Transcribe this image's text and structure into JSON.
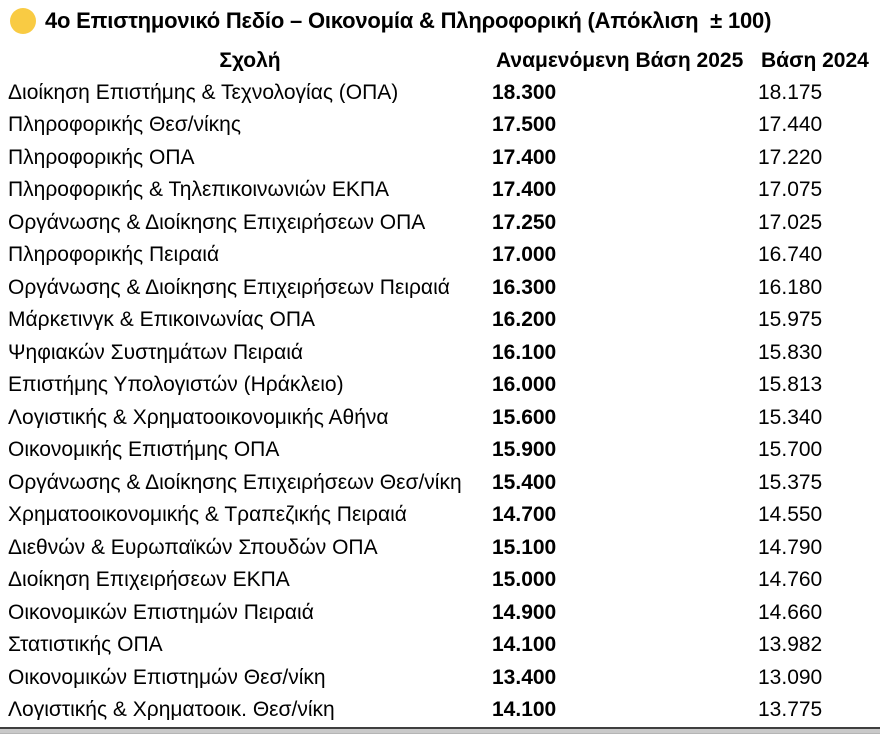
{
  "title": {
    "bullet_color": "#F9CB43",
    "text": "4ο Επιστημονικό Πεδίο – Οικονομία & Πληροφορική (Απόκλιση  ± 100)"
  },
  "table": {
    "columns": {
      "school": "Σχολή",
      "expected_2025": "Αναμενόμενη Βάση 2025",
      "base_2024": "Βάση 2024"
    },
    "rows": [
      {
        "school": "Διοίκηση Επιστήμης & Τεχνολογίας (ΟΠΑ)",
        "expected_2025": "18.300",
        "base_2024": "18.175"
      },
      {
        "school": "Πληροφορικής Θεσ/νίκης",
        "expected_2025": "17.500",
        "base_2024": "17.440"
      },
      {
        "school": "Πληροφορικής ΟΠΑ",
        "expected_2025": "17.400",
        "base_2024": "17.220"
      },
      {
        "school": "Πληροφορικής & Τηλεπικοινωνιών ΕΚΠΑ",
        "expected_2025": "17.400",
        "base_2024": "17.075"
      },
      {
        "school": "Οργάνωσης & Διοίκησης Επιχειρήσεων ΟΠΑ",
        "expected_2025": "17.250",
        "base_2024": "17.025"
      },
      {
        "school": "Πληροφορικής Πειραιά",
        "expected_2025": "17.000",
        "base_2024": "16.740"
      },
      {
        "school": "Οργάνωσης & Διοίκησης Επιχειρήσεων Πειραιά",
        "expected_2025": "16.300",
        "base_2024": "16.180"
      },
      {
        "school": "Μάρκετινγκ & Επικοινωνίας ΟΠΑ",
        "expected_2025": "16.200",
        "base_2024": "15.975"
      },
      {
        "school": "Ψηφιακών Συστημάτων Πειραιά",
        "expected_2025": "16.100",
        "base_2024": "15.830"
      },
      {
        "school": "Επιστήμης Υπολογιστών (Ηράκλειο)",
        "expected_2025": "16.000",
        "base_2024": "15.813"
      },
      {
        "school": "Λογιστικής & Χρηματοοικονομικής Αθήνα",
        "expected_2025": "15.600",
        "base_2024": "15.340"
      },
      {
        "school": "Οικονομικής Επιστήμης ΟΠΑ",
        "expected_2025": "15.900",
        "base_2024": "15.700"
      },
      {
        "school": "Οργάνωσης & Διοίκησης Επιχειρήσεων Θεσ/νίκη",
        "expected_2025": "15.400",
        "base_2024": "15.375"
      },
      {
        "school": "Χρηματοοικονομικής & Τραπεζικής Πειραιά",
        "expected_2025": "14.700",
        "base_2024": "14.550"
      },
      {
        "school": "Διεθνών & Ευρωπαϊκών Σπουδών ΟΠΑ",
        "expected_2025": "15.100",
        "base_2024": "14.790"
      },
      {
        "school": "Διοίκηση Επιχειρήσεων ΕΚΠΑ",
        "expected_2025": "15.000",
        "base_2024": "14.760"
      },
      {
        "school": "Οικονομικών Επιστημών Πειραιά",
        "expected_2025": "14.900",
        "base_2024": "14.660"
      },
      {
        "school": "Στατιστικής ΟΠΑ",
        "expected_2025": "14.100",
        "base_2024": "13.982"
      },
      {
        "school": "Οικονομικών Επιστημών Θεσ/νίκη",
        "expected_2025": "13.400",
        "base_2024": "13.090"
      },
      {
        "school": "Λογιστικής & Χρηματοοικ. Θεσ/νίκη",
        "expected_2025": "14.100",
        "base_2024": "13.775"
      }
    ]
  }
}
